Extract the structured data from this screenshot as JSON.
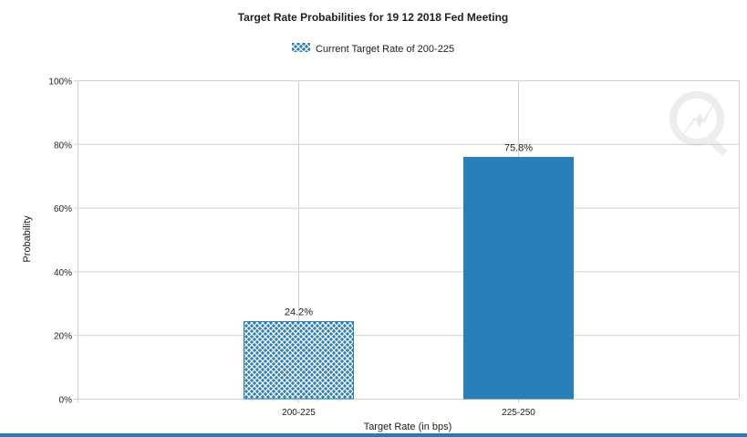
{
  "chart_data": {
    "type": "bar",
    "title": "Target Rate Probabilities for 19 12 2018 Fed Meeting",
    "legend": [
      {
        "label": "Current Target Rate of 200-225",
        "pattern": "crosshatch"
      }
    ],
    "legend_placement": "top-center",
    "categories": [
      "200-225",
      "225-250"
    ],
    "values": [
      24.2,
      75.8
    ],
    "data_labels": [
      "24.2%",
      "75.8%"
    ],
    "patterned": [
      true,
      false
    ],
    "xlabel": "Target Rate (in bps)",
    "ylabel": "Probability",
    "ylim": [
      0,
      100
    ],
    "yticks": [
      "0%",
      "20%",
      "40%",
      "60%",
      "80%",
      "100%"
    ],
    "grid": true,
    "colors": {
      "bar": "#2a7fb8",
      "grid": "#d0d0d0"
    }
  }
}
